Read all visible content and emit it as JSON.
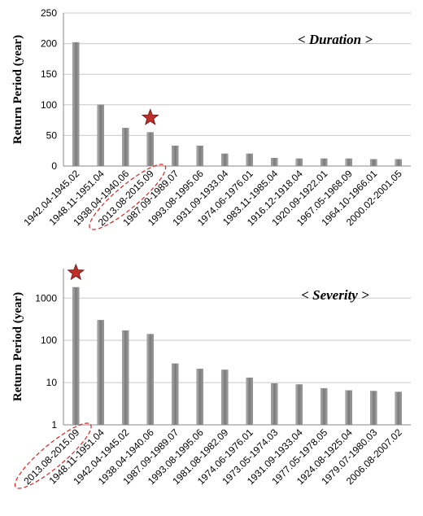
{
  "chart_data": [
    {
      "type": "bar",
      "annotation": "< Duration >",
      "y_label": "Return Period (year)",
      "categories": [
        "1942.04-1945.02",
        "1948.11-1951.04",
        "1938.04-1940.06",
        "2013.08-2015.09",
        "1987.09-1989.07",
        "1993.08-1995.06",
        "1931.09-1933.04",
        "1974.06-1976.01",
        "1983.11-1985.04",
        "1916.12-1918.04",
        "1920.09-1922.01",
        "1967.05-1968.09",
        "1964.10-1966.01",
        "2000.02-2001.05"
      ],
      "values": [
        202,
        100,
        62,
        55,
        33,
        33,
        20,
        20,
        13,
        12,
        12,
        12,
        11,
        11
      ],
      "color": "#8a8a8a",
      "ylim": [
        0,
        250
      ],
      "yticks": [
        0,
        50,
        100,
        150,
        200,
        250
      ],
      "grid": true,
      "log": false
    },
    {
      "type": "bar",
      "annotation": "< Severity >",
      "y_label": "Return Period (year)",
      "categories": [
        "2013.08-2015.09",
        "1948.11-1951.04",
        "1942.04-1945.02",
        "1938.04-1940.06",
        "1987.09-1989.07",
        "1993.08-1995.06",
        "1981.08-1982.09",
        "1974.06-1976.01",
        "1973.05-1974.03",
        "1931.09-1933.04",
        "1977.05-1978.05",
        "1924.08-1925.04",
        "1979.07-1980.03",
        "2006.08-2007.02"
      ],
      "values": [
        1800,
        300,
        170,
        140,
        28,
        21,
        20,
        13,
        9.5,
        9,
        7.3,
        6.5,
        6.3,
        6
      ],
      "color": "#8a8a8a",
      "ylim": [
        1,
        5000
      ],
      "yticks": [
        1,
        10,
        100,
        1000
      ],
      "grid": true,
      "log": true
    }
  ]
}
